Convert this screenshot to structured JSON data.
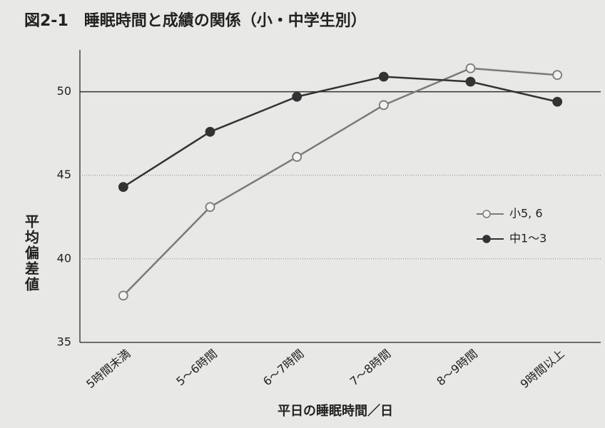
{
  "chart_data": {
    "type": "line",
    "title": "図2-1　睡眠時間と成績の関係（小・中学生別）",
    "x_label": "平日の睡眠時間／日",
    "y_label": "平均偏差値",
    "categories": [
      "5時間未満",
      "5～6時間",
      "6～7時間",
      "7～8時間",
      "8～9時間",
      "9時間以上"
    ],
    "series": [
      {
        "name": "小5, 6",
        "color": "#7a7a7a",
        "marker": "open",
        "values": [
          37.8,
          43.1,
          46.1,
          49.2,
          51.4,
          51.0
        ]
      },
      {
        "name": "中1～3",
        "color": "#333333",
        "marker": "filled",
        "values": [
          44.3,
          47.6,
          49.7,
          50.9,
          50.6,
          49.4
        ]
      }
    ],
    "ylim": [
      35,
      52.5
    ],
    "yticks": [
      35,
      40,
      45,
      50
    ],
    "grid": true,
    "reference_line": 50,
    "legend": "right"
  }
}
